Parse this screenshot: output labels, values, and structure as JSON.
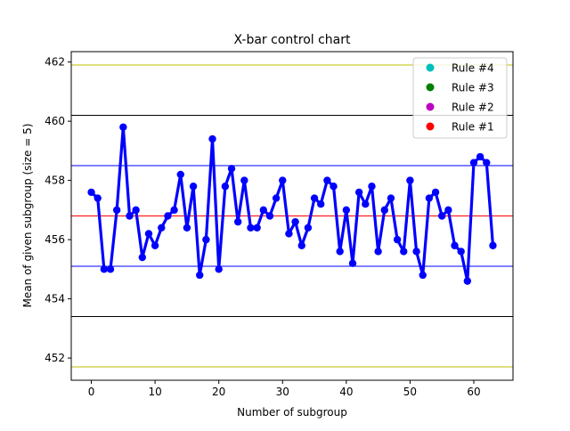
{
  "chart_data": {
    "type": "line",
    "title": "X-bar control chart",
    "xlabel": "Number of subgroup",
    "ylabel": "Mean of given subgroup (size = 5)",
    "xlim": [
      -3.15,
      66.15
    ],
    "ylim": [
      451.25,
      462.35
    ],
    "xticks": [
      0,
      10,
      20,
      30,
      40,
      50,
      60
    ],
    "yticks": [
      452,
      454,
      456,
      458,
      460,
      462
    ],
    "grid": false,
    "legend_position": "top-right",
    "legend": [
      {
        "label": "Rule #4",
        "color": "#00bfbf"
      },
      {
        "label": "Rule #3",
        "color": "#008000"
      },
      {
        "label": "Rule #2",
        "color": "#bf00bf"
      },
      {
        "label": "Rule #1",
        "color": "#ff0000"
      }
    ],
    "control_lines": [
      {
        "role": "outer-upper",
        "value": 461.9,
        "color": "#bfbf00"
      },
      {
        "role": "ucl",
        "value": 460.2,
        "color": "#000000"
      },
      {
        "role": "upper-1-sigma",
        "value": 458.5,
        "color": "#0000ff"
      },
      {
        "role": "center",
        "value": 456.8,
        "color": "#ff0000"
      },
      {
        "role": "lower-1-sigma",
        "value": 455.1,
        "color": "#0000ff"
      },
      {
        "role": "lcl",
        "value": 453.4,
        "color": "#000000"
      },
      {
        "role": "outer-lower",
        "value": 451.7,
        "color": "#bfbf00"
      }
    ],
    "series": [
      {
        "color": "#0000ff",
        "x": [
          0,
          1,
          2,
          3,
          4,
          5,
          6,
          7,
          8,
          9,
          10,
          11,
          12,
          13,
          14,
          15,
          16,
          17,
          18,
          19,
          20,
          21,
          22,
          23,
          24,
          25,
          26,
          27,
          28,
          29,
          30,
          31,
          32,
          33,
          34,
          35,
          36,
          37,
          38,
          39,
          40,
          41,
          42,
          43,
          44,
          45,
          46,
          47,
          48,
          49,
          50,
          51,
          52,
          53,
          54,
          55,
          56,
          57,
          58,
          59,
          60,
          61,
          62,
          63
        ],
        "y": [
          457.6,
          457.4,
          455.0,
          455.0,
          457.0,
          459.8,
          456.8,
          457.0,
          455.4,
          456.2,
          455.8,
          456.4,
          456.8,
          457.0,
          458.2,
          456.4,
          457.8,
          454.8,
          456.0,
          459.4,
          455.0,
          457.8,
          458.4,
          456.6,
          458.0,
          456.4,
          456.4,
          457.0,
          456.8,
          457.4,
          458.0,
          456.2,
          456.6,
          455.8,
          456.4,
          457.4,
          457.2,
          458.0,
          457.8,
          455.6,
          457.0,
          455.2,
          457.6,
          457.2,
          457.8,
          455.6,
          457.0,
          457.4,
          456.0,
          455.6,
          458.0,
          455.6,
          454.8,
          457.4,
          457.6,
          456.8,
          457.0,
          455.8,
          455.6,
          454.6,
          458.6,
          458.8,
          458.6,
          455.8
        ]
      }
    ]
  }
}
